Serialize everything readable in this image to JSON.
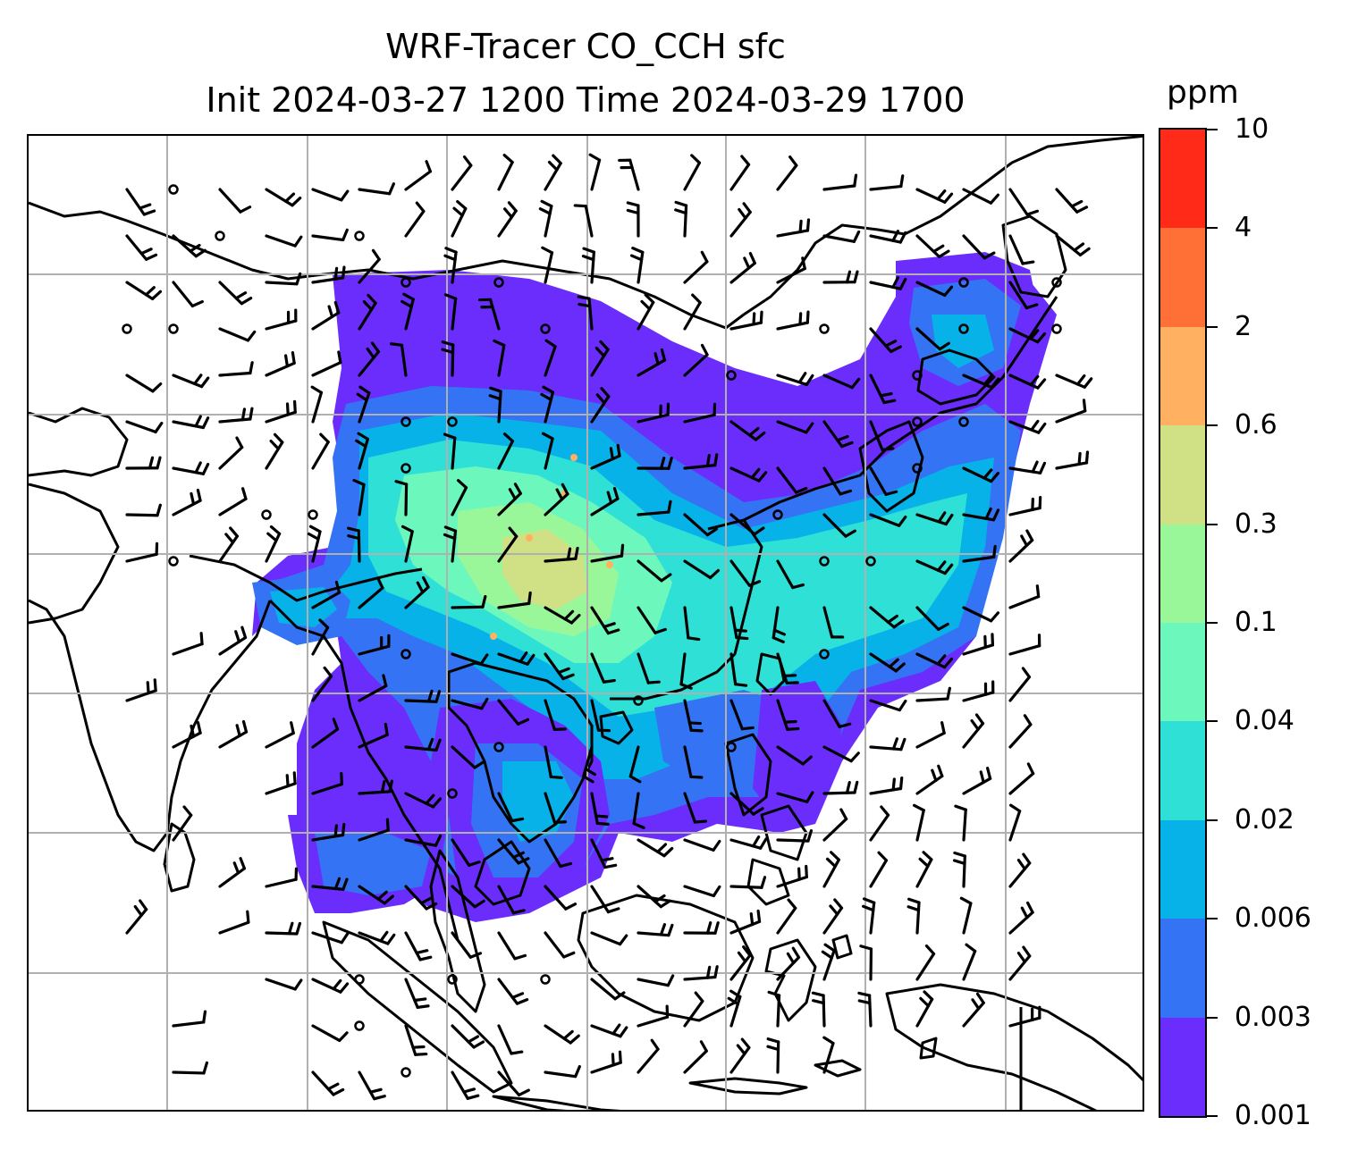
{
  "title": {
    "line1": "WRF-Tracer CO_CCH sfc",
    "line2": "Init 2024-03-27 1200 Time 2024-03-29 1700"
  },
  "colorbar": {
    "unit": "ppm",
    "levels": [
      "0.001",
      "0.003",
      "0.006",
      "0.02",
      "0.04",
      "0.1",
      "0.3",
      "0.6",
      "2",
      "4",
      "10"
    ],
    "colors": [
      "#6a2dfb",
      "#3474f4",
      "#06b2e8",
      "#2ee0d5",
      "#6cf8bd",
      "#9af799",
      "#d0e084",
      "#ffb061",
      "#ff7036",
      "#ff2a17"
    ]
  },
  "map": {
    "field": "CO_CCH surface tracer concentration",
    "overlay": "wind barbs",
    "gridline_color": "#b0b0b0",
    "coastline_color": "#000000"
  }
}
